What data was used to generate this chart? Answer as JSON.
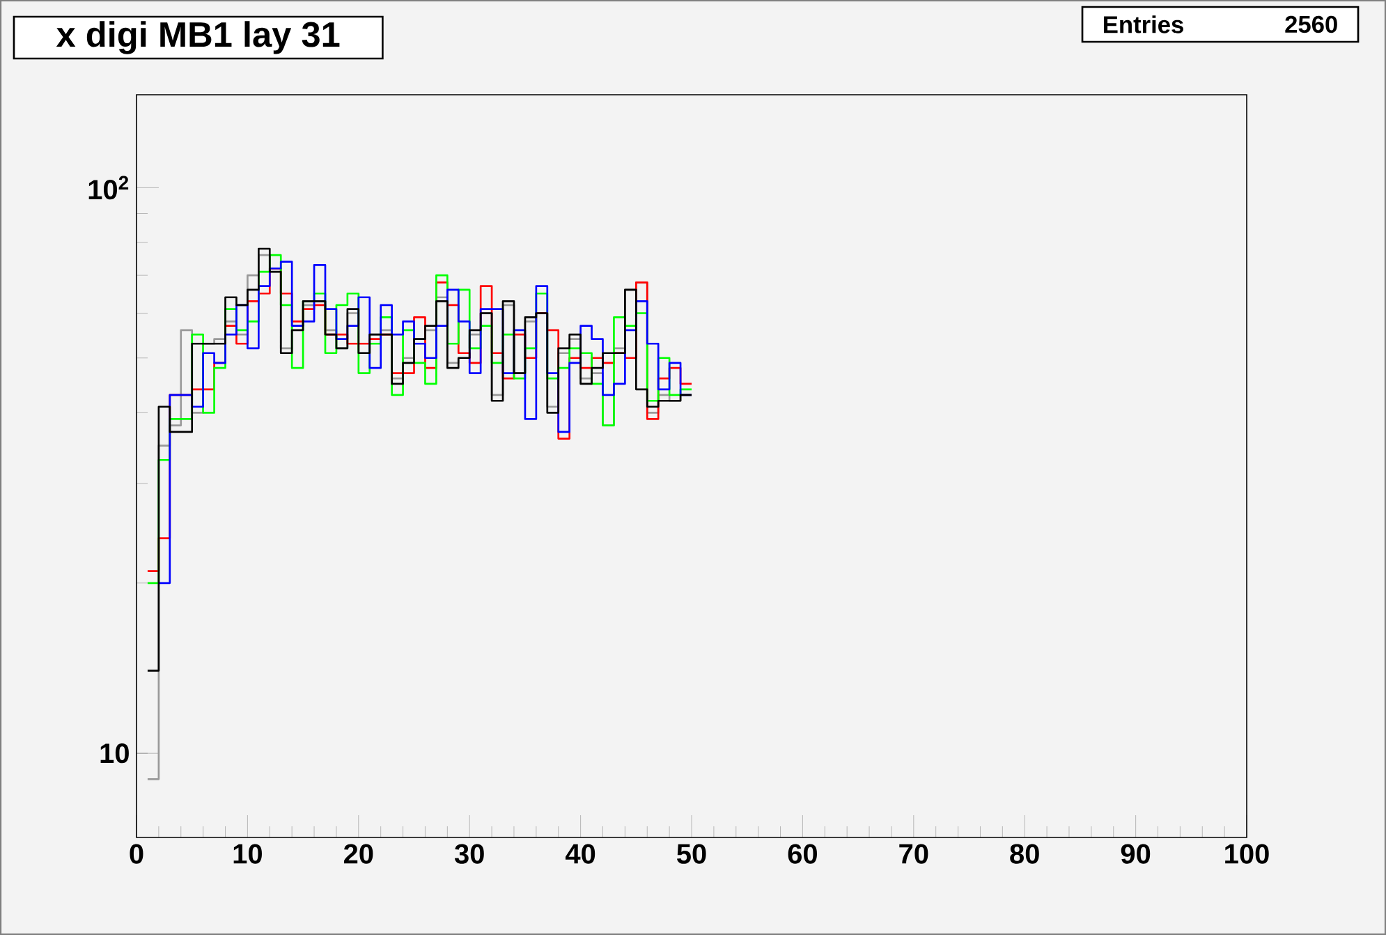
{
  "chart_data": {
    "type": "histogram",
    "title": "x digi MB1 lay 31",
    "annotations": [
      "Entries",
      "2560"
    ],
    "bins": [
      1,
      2,
      3,
      4,
      5,
      6,
      7,
      8,
      9,
      10,
      11,
      12,
      13,
      14,
      15,
      16,
      17,
      18,
      19,
      20,
      21,
      22,
      23,
      24,
      25,
      26,
      27,
      28,
      29,
      30,
      31,
      32,
      33,
      34,
      35,
      36,
      37,
      38,
      39,
      40,
      41,
      42,
      43,
      44,
      45,
      46,
      47,
      48,
      49,
      50
    ],
    "series": [
      {
        "color": "#999999",
        "values": [
          9,
          35,
          38,
          56,
          40,
          53,
          54,
          58,
          55,
          70,
          76,
          72,
          52,
          57,
          62,
          63,
          56,
          52,
          60,
          51,
          55,
          56,
          46,
          50,
          54,
          56,
          64,
          49,
          50,
          55,
          60,
          43,
          62,
          47,
          58,
          60,
          41,
          51,
          54,
          46,
          47,
          38,
          52,
          66,
          68,
          40,
          43,
          42,
          43
        ]
      },
      {
        "color": "#ff0000",
        "values": [
          21,
          24,
          43,
          43,
          44,
          44,
          49,
          57,
          53,
          63,
          65,
          72,
          65,
          58,
          61,
          62,
          55,
          55,
          53,
          53,
          54,
          55,
          47,
          47,
          59,
          48,
          68,
          62,
          51,
          49,
          67,
          51,
          46,
          55,
          50,
          60,
          56,
          36,
          50,
          48,
          50,
          49,
          51,
          50,
          68,
          39,
          46,
          48,
          45
        ]
      },
      {
        "color": "#00ff00",
        "values": [
          20,
          33,
          39,
          39,
          55,
          40,
          48,
          61,
          56,
          58,
          71,
          76,
          62,
          48,
          63,
          65,
          51,
          62,
          65,
          47,
          53,
          59,
          43,
          56,
          49,
          45,
          70,
          53,
          66,
          52,
          57,
          49,
          55,
          46,
          52,
          65,
          46,
          48,
          52,
          51,
          45,
          38,
          59,
          57,
          60,
          42,
          50,
          43,
          44
        ]
      },
      {
        "color": "#0000ff",
        "bins": [
          2,
          3,
          4,
          5,
          6,
          7,
          8,
          9,
          10,
          11,
          12,
          13,
          14,
          15,
          16,
          17,
          18,
          19,
          20,
          21,
          22,
          23,
          24,
          25,
          26,
          27,
          28,
          29,
          30,
          31,
          32,
          33,
          34,
          35,
          36,
          37,
          38,
          39,
          40,
          41,
          42,
          43,
          44,
          45,
          46,
          47,
          48,
          49,
          50
        ],
        "values": [
          20,
          43,
          43,
          41,
          51,
          49,
          55,
          62,
          52,
          67,
          72,
          74,
          57,
          58,
          73,
          61,
          54,
          57,
          64,
          48,
          62,
          55,
          58,
          53,
          50,
          57,
          66,
          58,
          47,
          61,
          61,
          47,
          56,
          39,
          67,
          47,
          37,
          49,
          57,
          54,
          43,
          45,
          56,
          63,
          53,
          44,
          49,
          43
        ]
      },
      {
        "color": "#000000",
        "values": [
          14,
          41,
          37,
          37,
          53,
          53,
          53,
          64,
          62,
          66,
          78,
          71,
          51,
          56,
          63,
          63,
          55,
          52,
          61,
          51,
          55,
          55,
          45,
          49,
          54,
          57,
          63,
          48,
          50,
          56,
          60,
          42,
          63,
          47,
          59,
          60,
          40,
          52,
          55,
          45,
          48,
          51,
          51,
          66,
          44,
          41,
          42,
          42,
          43
        ]
      }
    ],
    "log": "y",
    "xlim": [
      0,
      100
    ],
    "ylim": [
      7.1,
      146
    ],
    "xticks": [
      0,
      10,
      20,
      30,
      40,
      50,
      60,
      70,
      80,
      90,
      100
    ],
    "yticks": [
      10,
      {
        "value": 100,
        "label": "10$^{2}$"
      }
    ]
  }
}
